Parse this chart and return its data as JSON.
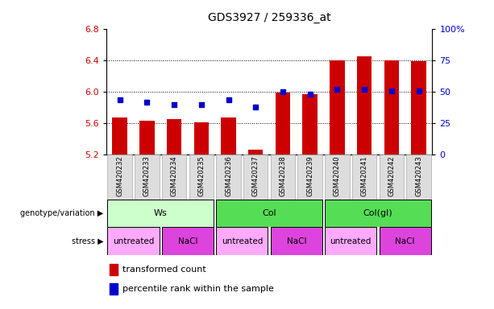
{
  "title": "GDS3927 / 259336_at",
  "samples": [
    "GSM420232",
    "GSM420233",
    "GSM420234",
    "GSM420235",
    "GSM420236",
    "GSM420237",
    "GSM420238",
    "GSM420239",
    "GSM420240",
    "GSM420241",
    "GSM420242",
    "GSM420243"
  ],
  "transformed_count": [
    5.67,
    5.63,
    5.65,
    5.61,
    5.67,
    5.26,
    5.99,
    5.97,
    6.4,
    6.46,
    6.4,
    6.39
  ],
  "percentile_rank": [
    44,
    42,
    40,
    40,
    44,
    38,
    50,
    48,
    52,
    52,
    51,
    51
  ],
  "y_min": 5.2,
  "y_max": 6.8,
  "y_ticks": [
    5.2,
    5.6,
    6.0,
    6.4,
    6.8
  ],
  "right_ticks": [
    0,
    25,
    50,
    75,
    100
  ],
  "bar_color": "#CC0000",
  "dot_color": "#0000CC",
  "bar_bottom": 5.2,
  "geno_groups": [
    {
      "label": "Ws",
      "start": 0,
      "end": 3,
      "color": "#ccffcc"
    },
    {
      "label": "Col",
      "start": 4,
      "end": 7,
      "color": "#55dd55"
    },
    {
      "label": "Col(gl)",
      "start": 8,
      "end": 11,
      "color": "#55dd55"
    }
  ],
  "stress_groups": [
    {
      "label": "untreated",
      "start": 0,
      "end": 1,
      "color": "#ffaaff"
    },
    {
      "label": "NaCl",
      "start": 2,
      "end": 3,
      "color": "#dd44dd"
    },
    {
      "label": "untreated",
      "start": 4,
      "end": 5,
      "color": "#ffaaff"
    },
    {
      "label": "NaCl",
      "start": 6,
      "end": 7,
      "color": "#dd44dd"
    },
    {
      "label": "untreated",
      "start": 8,
      "end": 9,
      "color": "#ffaaff"
    },
    {
      "label": "NaCl",
      "start": 10,
      "end": 11,
      "color": "#dd44dd"
    }
  ],
  "bg_color": "#ffffff",
  "legend_items": [
    {
      "label": "transformed count",
      "color": "#CC0000"
    },
    {
      "label": "percentile rank within the sample",
      "color": "#0000CC"
    }
  ]
}
